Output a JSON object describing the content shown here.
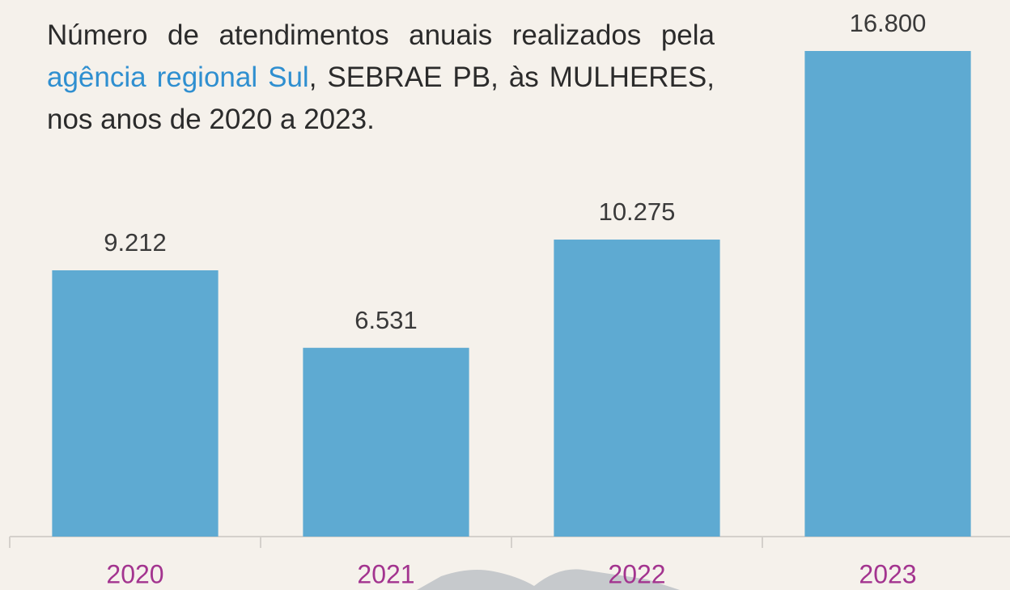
{
  "chart_data": {
    "type": "bar",
    "title": [
      "Número de atendimentos anuais realizados pela ",
      "agência regional Sul",
      ", SEBRAE PB, às MULHERES, nos anos de 2020 a 2023."
    ],
    "categories": [
      "2020",
      "2021",
      "2022",
      "2023"
    ],
    "values": [
      9212,
      6531,
      10275,
      16800
    ],
    "value_labels": [
      "9.212",
      "6.531",
      "10.275",
      "16.800"
    ],
    "color": "#5eaad2",
    "ylim": [
      0,
      16800
    ]
  }
}
